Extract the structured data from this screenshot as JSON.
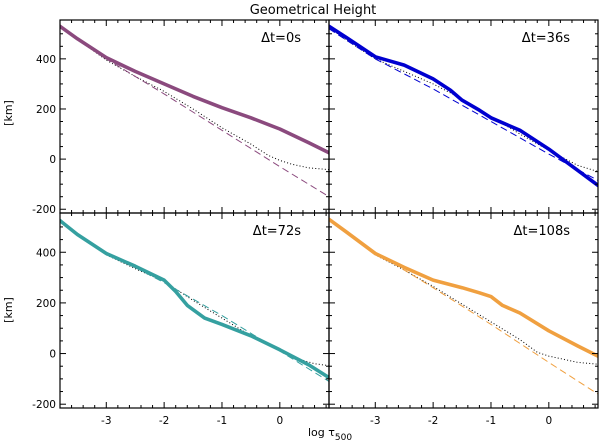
{
  "chart_data": {
    "type": "line",
    "title": "Geometrical Height",
    "xlabel": "log τ",
    "xlabel_sub": "500",
    "ylabel": "[km]",
    "xlim": [
      -3.8,
      0.85
    ],
    "ylim": [
      -215,
      555
    ],
    "xticks": [
      -3,
      -2,
      -1,
      0
    ],
    "xtick_labels": [
      "-3",
      "-2",
      "-1",
      "0"
    ],
    "yticks": [
      -200,
      0,
      200,
      400
    ],
    "ytick_labels": [
      "-200",
      "0",
      "200",
      "400"
    ],
    "panels": [
      {
        "label": "Δt=0s",
        "color": "#8b4a7e",
        "thick": {
          "x": [
            -3.8,
            -3.5,
            -3.0,
            -2.5,
            -2.0,
            -1.5,
            -1.0,
            -0.5,
            0.0,
            0.5,
            0.85
          ],
          "y": [
            530,
            480,
            405,
            350,
            300,
            250,
            205,
            165,
            120,
            65,
            25
          ]
        },
        "dotted": {
          "x": [
            -3.8,
            -3.5,
            -3.0,
            -2.5,
            -2.0,
            -1.5,
            -1.0,
            -0.5,
            -0.2,
            0.0,
            0.2,
            0.5,
            0.85
          ],
          "y": [
            530,
            478,
            395,
            330,
            270,
            200,
            125,
            60,
            15,
            -5,
            -20,
            -35,
            -42
          ]
        },
        "dashed": {
          "x": [
            -3.8,
            -3.0,
            -2.0,
            -1.0,
            0.0,
            0.85
          ],
          "y": [
            530,
            400,
            260,
            115,
            -30,
            -150
          ]
        }
      },
      {
        "label": "Δt=36s",
        "color": "#0000d0",
        "thick": {
          "x": [
            -3.8,
            -3.5,
            -3.0,
            -2.5,
            -2.0,
            -1.7,
            -1.5,
            -1.2,
            -1.0,
            -0.5,
            0.0,
            0.5,
            0.85
          ],
          "y": [
            530,
            485,
            408,
            375,
            320,
            275,
            235,
            195,
            165,
            115,
            40,
            -45,
            -105
          ]
        },
        "dotted": {
          "x": [
            -3.8,
            -3.5,
            -3.0,
            -2.5,
            -2.0,
            -1.5,
            -1.0,
            -0.5,
            0.0,
            0.5,
            0.85
          ],
          "y": [
            525,
            475,
            400,
            350,
            300,
            240,
            170,
            100,
            35,
            -25,
            -50
          ]
        },
        "dashed": {
          "x": [
            -3.8,
            -3.0,
            -2.0,
            -1.0,
            0.0,
            0.85
          ],
          "y": [
            520,
            400,
            280,
            150,
            20,
            -85
          ]
        }
      },
      {
        "label": "Δt=72s",
        "color": "#35a0a0",
        "thick": {
          "x": [
            -3.8,
            -3.5,
            -3.0,
            -2.5,
            -2.0,
            -1.8,
            -1.6,
            -1.3,
            -1.0,
            -0.5,
            0.0,
            0.5,
            0.85
          ],
          "y": [
            525,
            470,
            395,
            345,
            290,
            245,
            190,
            140,
            115,
            70,
            15,
            -45,
            -95
          ]
        },
        "dotted": {
          "x": [
            -3.8,
            -3.5,
            -3.0,
            -2.5,
            -2.0,
            -1.5,
            -1.0,
            -0.5,
            -0.2,
            0.0,
            0.3,
            0.6,
            0.85
          ],
          "y": [
            525,
            472,
            390,
            335,
            285,
            210,
            140,
            70,
            35,
            15,
            -20,
            -40,
            -48
          ]
        },
        "dashed": {
          "x": [
            -3.8,
            -3.0,
            -2.0,
            -1.0,
            0.0,
            0.85
          ],
          "y": [
            520,
            400,
            280,
            150,
            10,
            -110
          ]
        }
      },
      {
        "label": "Δt=108s",
        "color": "#f0a040",
        "thick": {
          "x": [
            -3.8,
            -3.5,
            -3.0,
            -2.5,
            -2.0,
            -1.5,
            -1.2,
            -1.0,
            -0.8,
            -0.5,
            0.0,
            0.5,
            0.85
          ],
          "y": [
            530,
            480,
            395,
            340,
            290,
            260,
            240,
            225,
            190,
            160,
            90,
            30,
            -10
          ]
        },
        "dotted": {
          "x": [
            -3.8,
            -3.5,
            -3.0,
            -2.5,
            -2.0,
            -1.5,
            -1.0,
            -0.5,
            -0.2,
            0.0,
            0.2,
            0.5,
            0.85
          ],
          "y": [
            530,
            478,
            390,
            330,
            265,
            195,
            125,
            55,
            5,
            -10,
            -20,
            -35,
            -42
          ]
        },
        "dashed": {
          "x": [
            -3.8,
            -3.0,
            -2.0,
            -1.0,
            0.0,
            0.85
          ],
          "y": [
            525,
            400,
            260,
            115,
            -35,
            -160
          ]
        }
      }
    ]
  }
}
